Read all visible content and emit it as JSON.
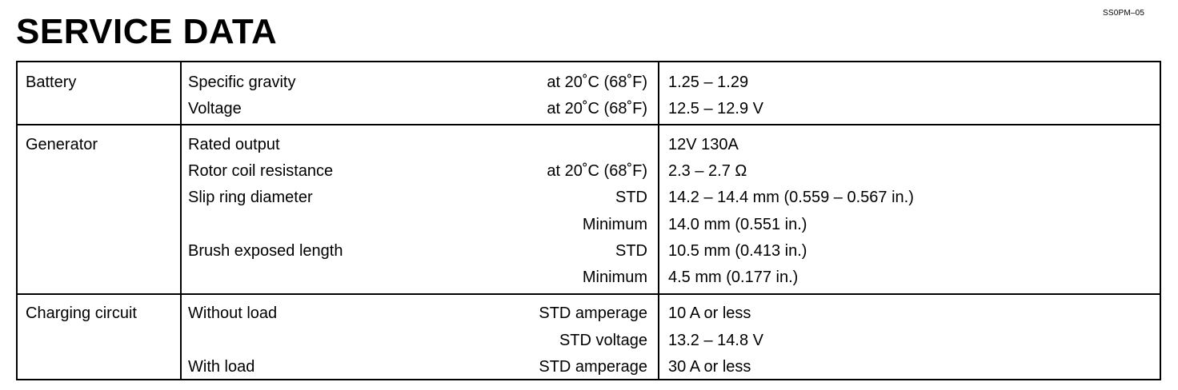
{
  "document": {
    "page_code": "SS0PM–05",
    "title": "SERVICE DATA"
  },
  "groups": [
    {
      "name": "Battery",
      "rows": [
        {
          "item": "Specific gravity",
          "condition": "at 20˚C (68˚F)",
          "value": "1.25 – 1.29"
        },
        {
          "item": "Voltage",
          "condition": "at 20˚C (68˚F)",
          "value": "12.5 – 12.9 V"
        }
      ]
    },
    {
      "name": "Generator",
      "rows": [
        {
          "item": "Rated output",
          "condition": "",
          "value": "12V  130A"
        },
        {
          "item": "Rotor coil resistance",
          "condition": "at 20˚C (68˚F)",
          "value": "2.3 – 2.7 Ω"
        },
        {
          "item": "Slip ring diameter",
          "condition": "STD",
          "value": "14.2 – 14.4 mm (0.559 – 0.567 in.)"
        },
        {
          "item": "",
          "condition": "Minimum",
          "value": "14.0 mm (0.551 in.)"
        },
        {
          "item": "Brush exposed length",
          "condition": "STD",
          "value": "10.5 mm (0.413 in.)"
        },
        {
          "item": "",
          "condition": "Minimum",
          "value": "4.5 mm (0.177 in.)"
        }
      ]
    },
    {
      "name": "Charging circuit",
      "rows": [
        {
          "item": "Without load",
          "condition": "STD amperage",
          "value": "10 A or less"
        },
        {
          "item": "",
          "condition": "STD voltage",
          "value": "13.2 – 14.8 V"
        },
        {
          "item": "With load",
          "condition": "STD amperage",
          "value": "30 A or less"
        }
      ]
    }
  ]
}
